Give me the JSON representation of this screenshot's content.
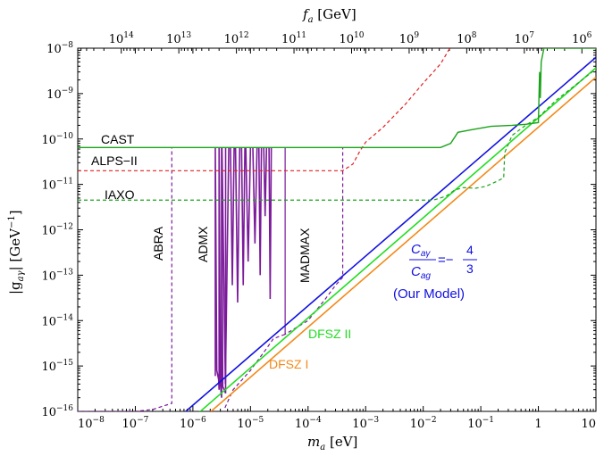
{
  "chart_data": {
    "type": "line",
    "title": "",
    "x_axis": {
      "label_main": "m",
      "label_sub": "a",
      "label_unit": " [eV]",
      "scale": "log",
      "range": [
        1e-08,
        10
      ],
      "ticks": [
        {
          "value": 1e-08,
          "mantissa": "10",
          "exp": "−8"
        },
        {
          "value": 1e-07,
          "mantissa": "10",
          "exp": "−7"
        },
        {
          "value": 1e-06,
          "mantissa": "10",
          "exp": "−6"
        },
        {
          "value": 1e-05,
          "mantissa": "10",
          "exp": "−5"
        },
        {
          "value": 0.0001,
          "mantissa": "10",
          "exp": "−4"
        },
        {
          "value": 0.001,
          "mantissa": "10",
          "exp": "−3"
        },
        {
          "value": 0.01,
          "mantissa": "10",
          "exp": "−2"
        },
        {
          "value": 0.1,
          "mantissa": "10",
          "exp": "−1"
        },
        {
          "value": 1,
          "mantissa": "1",
          "exp": ""
        },
        {
          "value": 10,
          "mantissa": "10",
          "exp": ""
        }
      ]
    },
    "top_axis": {
      "label_main": "f",
      "label_sub": "a",
      "label_unit": " [GeV]",
      "ticks": [
        {
          "value": 100000000000000.0,
          "mantissa": "10",
          "exp": "14"
        },
        {
          "value": 10000000000000.0,
          "mantissa": "10",
          "exp": "13"
        },
        {
          "value": 1000000000000.0,
          "mantissa": "10",
          "exp": "12"
        },
        {
          "value": 100000000000.0,
          "mantissa": "10",
          "exp": "11"
        },
        {
          "value": 10000000000.0,
          "mantissa": "10",
          "exp": "10"
        },
        {
          "value": 1000000000.0,
          "mantissa": "10",
          "exp": "9"
        },
        {
          "value": 100000000.0,
          "mantissa": "10",
          "exp": "8"
        },
        {
          "value": 10000000.0,
          "mantissa": "10",
          "exp": "7"
        },
        {
          "value": 1000000.0,
          "mantissa": "10",
          "exp": "6"
        }
      ]
    },
    "y_axis": {
      "label_main": "|g",
      "label_sub": "aγ",
      "label_unit": "| [GeV",
      "label_sup": "−1",
      "label_end": "]",
      "scale": "log",
      "range": [
        1e-16,
        1e-08
      ],
      "ticks": [
        {
          "value": 1e-08,
          "mantissa": "10",
          "exp": "−8"
        },
        {
          "value": 1e-09,
          "mantissa": "10",
          "exp": "−9"
        },
        {
          "value": 1e-10,
          "mantissa": "10",
          "exp": "−10"
        },
        {
          "value": 1e-11,
          "mantissa": "10",
          "exp": "−11"
        },
        {
          "value": 1e-12,
          "mantissa": "10",
          "exp": "−12"
        },
        {
          "value": 1e-13,
          "mantissa": "10",
          "exp": "−13"
        },
        {
          "value": 1e-14,
          "mantissa": "10",
          "exp": "−14"
        },
        {
          "value": 1e-15,
          "mantissa": "10",
          "exp": "−15"
        },
        {
          "value": 1e-16,
          "mantissa": "10",
          "exp": "−16"
        }
      ]
    },
    "grid": false,
    "series": [
      {
        "name": "CAST",
        "color": "#1aa31a",
        "dash": false,
        "x": [
          1e-08,
          0.02,
          0.03,
          0.04,
          0.07,
          0.15,
          0.35,
          0.6,
          1.0,
          1.05,
          1.08,
          1.12,
          1.25,
          2.0,
          10
        ],
        "y": [
          6.5e-11,
          6.5e-11,
          8e-11,
          1.4e-10,
          1.6e-10,
          1.9e-10,
          2e-10,
          2.1e-10,
          2.3e-10,
          3e-09,
          8e-10,
          5e-09,
          1e-08,
          1e-08,
          1e-08
        ]
      },
      {
        "name": "ALPS-II",
        "color": "#e02020",
        "dash": true,
        "x": [
          1e-08,
          0.0004,
          0.0006,
          0.0008,
          0.001,
          0.002,
          0.005,
          0.01,
          0.02,
          0.029
        ],
        "y": [
          2e-11,
          2e-11,
          2.8e-11,
          5.5e-11,
          8.5e-11,
          1.8e-10,
          6e-10,
          1.7e-09,
          4.5e-09,
          1e-08
        ]
      },
      {
        "name": "IAXO",
        "color": "#1aa31a",
        "dash": true,
        "x": [
          1e-08,
          0.015,
          0.025,
          0.035,
          0.05,
          0.08,
          0.12,
          0.2,
          0.25,
          0.26,
          0.35,
          0.6,
          1.0,
          2.0,
          10
        ],
        "y": [
          4.5e-12,
          4.5e-12,
          5.5e-12,
          7.5e-12,
          8.5e-12,
          8.2e-12,
          9e-12,
          1.2e-11,
          1.4e-11,
          5e-11,
          1.2e-10,
          2e-10,
          3e-10,
          7e-10,
          3.5e-09
        ]
      },
      {
        "name": "ABRA",
        "color": "#7b1a9a",
        "dash": true,
        "x": [
          1e-08,
          1e-07,
          2e-07,
          3e-07,
          4.3e-07,
          4.3e-07
        ],
        "y": [
          1e-16,
          1e-16,
          1.1e-16,
          1.3e-16,
          1.5e-16,
          6.5e-11
        ]
      },
      {
        "name": "ADMX",
        "color": "#7b1a9a",
        "dash": false,
        "x": [
          2.45e-06,
          2.45e-06,
          2.6e-06,
          2.8e-06,
          2.85e-06,
          2.85e-06,
          3e-06,
          3.15e-06,
          3.15e-06,
          3.3e-06,
          3.5e-06,
          3.7e-06,
          3.7e-06
        ],
        "y": [
          6e-16,
          6.5e-11,
          8e-16,
          5e-16,
          3e-16,
          6.5e-11,
          4e-16,
          2e-16,
          6.5e-11,
          3.5e-16,
          3e-16,
          2.5e-16,
          6.5e-11
        ]
      },
      {
        "name": "MADMAX",
        "color": "#7b1a9a",
        "dash": true,
        "x": [
          3.6e-06,
          5e-06,
          1e-05,
          1.8e-05,
          2.5e-05,
          4e-05,
          4e-05,
          4e-05,
          0.0001,
          0.0002,
          0.0003,
          0.0004,
          0.0004
        ],
        "y": [
          1.2e-16,
          3e-16,
          8e-16,
          2.2e-15,
          4e-15,
          5e-15,
          6.5e-11,
          5e-15,
          1e-14,
          3e-14,
          6e-14,
          9e-14,
          6.5e-11
        ]
      },
      {
        "name": "DFSZ II",
        "color": "#22dd22",
        "dash": false,
        "x": [
          1e-06,
          10
        ],
        "y": [
          7.2e-17,
          3.7e-09
        ]
      },
      {
        "name": "DFSZ I",
        "color": "#f28a1a",
        "dash": false,
        "x": [
          1e-06,
          10
        ],
        "y": [
          4.5e-17,
          2.3e-09
        ]
      },
      {
        "name": "Our Model",
        "color": "#1010e0",
        "dash": false,
        "x": [
          1e-07,
          10
        ],
        "y": [
          1.1e-17,
          6.3e-09
        ]
      }
    ],
    "labels": {
      "cast": "CAST",
      "alps": "ALPS−II",
      "iaxo": "IAXO",
      "abra": "ABRA",
      "admx": "ADMX",
      "madmax": "MADMAX",
      "dfsz1": "DFSZ I",
      "dfsz2": "DFSZ II",
      "model_num_main": "C",
      "model_num_sub": "aγ",
      "model_den_main": "C",
      "model_den_sub": "ag",
      "model_eq": "=−",
      "model_frac_num": "4",
      "model_frac_den": "3",
      "model_caption": "(Our Model)"
    },
    "colors": {
      "cast": "#1aa31a",
      "alps": "#e02020",
      "purple": "#7b1a9a",
      "dfsz1": "#f28a1a",
      "dfsz2": "#22dd22",
      "model": "#1010e0"
    }
  }
}
